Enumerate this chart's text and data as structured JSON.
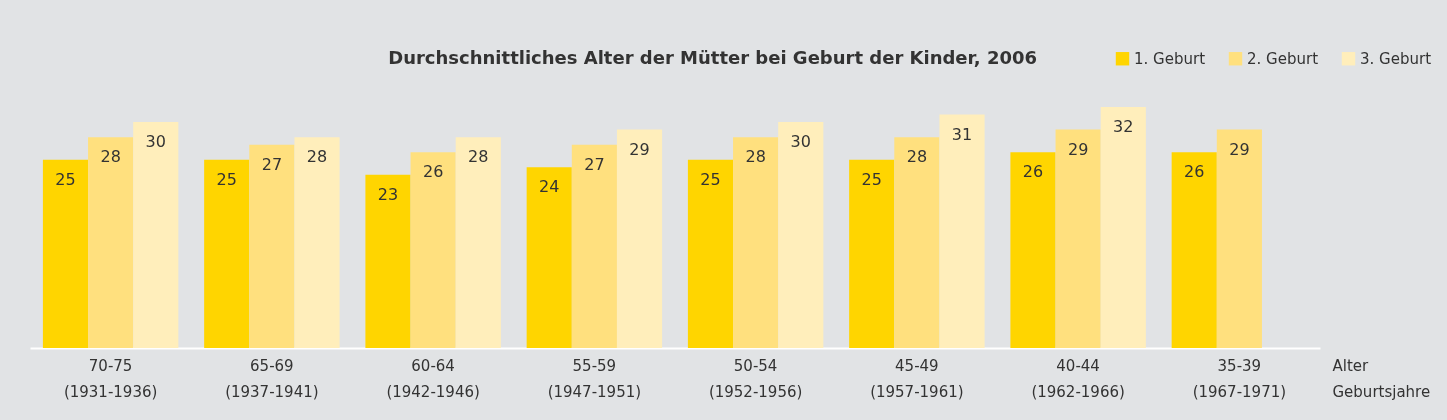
{
  "chart_data": {
    "type": "bar",
    "title": "Durchschnittliches Alter der Mütter bei Geburt der Kinder, 2006",
    "xlabel": "Alter Geburtsjahre",
    "categories": [
      "70-75 (1931-1936)",
      "65-69 (1937-1941)",
      "60-64 (1942-1946)",
      "55-59 (1947-1951)",
      "50-54 (1952-1956)",
      "45-49 (1957-1961)",
      "40-44 (1962-1966)",
      "35-39 (1967-1971)"
    ],
    "series": [
      {
        "name": "1. Geburt",
        "color": "#ffd500",
        "values": [
          25,
          25,
          23,
          24,
          25,
          25,
          26,
          26
        ]
      },
      {
        "name": "2. Geburt",
        "color": "#ffe07e",
        "values": [
          28,
          27,
          26,
          27,
          28,
          28,
          29,
          29
        ]
      },
      {
        "name": "3. Geburt",
        "color": "#ffeebb",
        "values": [
          30,
          28,
          28,
          29,
          30,
          31,
          32,
          null
        ]
      }
    ],
    "data_labels": true,
    "legend": "top right",
    "grid": false
  }
}
